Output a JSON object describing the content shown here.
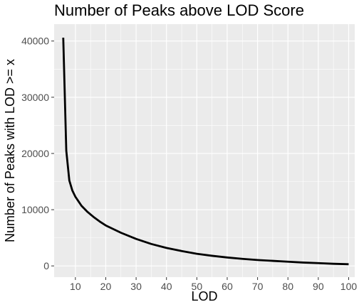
{
  "chart_data": {
    "type": "line",
    "title": "Number of Peaks above LOD Score",
    "xlabel": "LOD",
    "ylabel": "Number of Peaks with LOD >= x",
    "xlim": [
      3,
      102
    ],
    "ylim": [
      -2000,
      43000
    ],
    "x_ticks": [
      10,
      20,
      30,
      40,
      50,
      60,
      70,
      80,
      90,
      100
    ],
    "y_ticks": [
      0,
      10000,
      20000,
      30000,
      40000
    ],
    "x_tick_labels": [
      "10",
      "20",
      "30",
      "40",
      "50",
      "60",
      "70",
      "80",
      "90",
      "100"
    ],
    "y_tick_labels": [
      "0",
      "10000",
      "20000",
      "30000",
      "40000"
    ],
    "grid": true,
    "background": "#ebebeb",
    "gridline_color": "#ffffff",
    "line_color": "#000000",
    "series": [
      {
        "x": [
          6,
          7,
          8,
          9,
          10,
          11,
          12,
          14,
          16,
          18,
          20,
          25,
          30,
          35,
          40,
          45,
          50,
          55,
          60,
          65,
          70,
          75,
          80,
          85,
          90,
          95,
          100
        ],
        "y": [
          40600,
          20500,
          15200,
          13400,
          12300,
          11500,
          10700,
          9600,
          8700,
          7900,
          7200,
          5900,
          4800,
          3900,
          3200,
          2650,
          2150,
          1800,
          1500,
          1250,
          1050,
          900,
          750,
          600,
          500,
          380,
          300
        ]
      }
    ]
  }
}
